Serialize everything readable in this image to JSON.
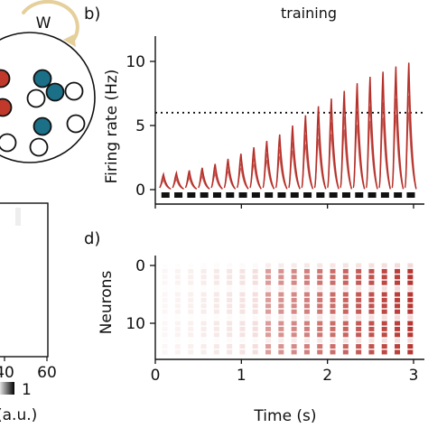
{
  "panel_a": {
    "w_label": "W",
    "circles": [
      {
        "color": "red"
      },
      {
        "color": "teal"
      },
      {
        "color": "open"
      },
      {
        "color": "red"
      },
      {
        "color": "open"
      },
      {
        "color": "teal"
      },
      {
        "color": "teal"
      },
      {
        "color": "open"
      },
      {
        "color": "open"
      },
      {
        "color": "open"
      }
    ],
    "colors": {
      "red": "#c0392b",
      "teal": "#1b6f86",
      "arrow": "#e5cf9a"
    }
  },
  "panel_c": {
    "tick_labels": [
      "40",
      "60"
    ],
    "colorbar_max": "1",
    "colorbar_unit": "(a.u.)"
  },
  "panel_b": {
    "label": "b)",
    "title": "training"
  },
  "panel_d": {
    "label": "d)"
  },
  "chart_data": [
    {
      "type": "line",
      "panel": "b",
      "title": "training",
      "ylabel": "Firing rate (Hz)",
      "xlim": [
        0,
        3.1
      ],
      "ylim": [
        -0.6,
        10.8
      ],
      "yticks": [
        0,
        5,
        10
      ],
      "xticks": [
        0,
        1,
        2,
        3
      ],
      "threshold": 6,
      "stimulus_onsets": [
        0.05,
        0.2,
        0.35,
        0.5,
        0.65,
        0.8,
        0.95,
        1.1,
        1.25,
        1.4,
        1.55,
        1.7,
        1.85,
        2.0,
        2.15,
        2.3,
        2.45,
        2.6,
        2.75,
        2.9
      ],
      "peak_rates": [
        1.2,
        1.3,
        1.5,
        1.7,
        2.0,
        2.4,
        2.8,
        3.3,
        3.8,
        4.3,
        5.0,
        5.8,
        6.5,
        7.1,
        7.7,
        8.3,
        8.8,
        9.2,
        9.6,
        9.9
      ],
      "color": "#b5302a"
    },
    {
      "type": "heatmap",
      "panel": "d",
      "xlabel": "Time (s)",
      "ylabel": "Neurons",
      "xlim": [
        0,
        3.1
      ],
      "xticks": [
        0,
        1,
        2,
        3
      ],
      "yticks": [
        0,
        10
      ],
      "neurons": 16,
      "active_neurons": [
        1,
        2,
        3,
        5,
        6,
        7,
        8,
        10,
        11,
        12,
        14,
        15
      ],
      "color": "#b5302a"
    }
  ]
}
